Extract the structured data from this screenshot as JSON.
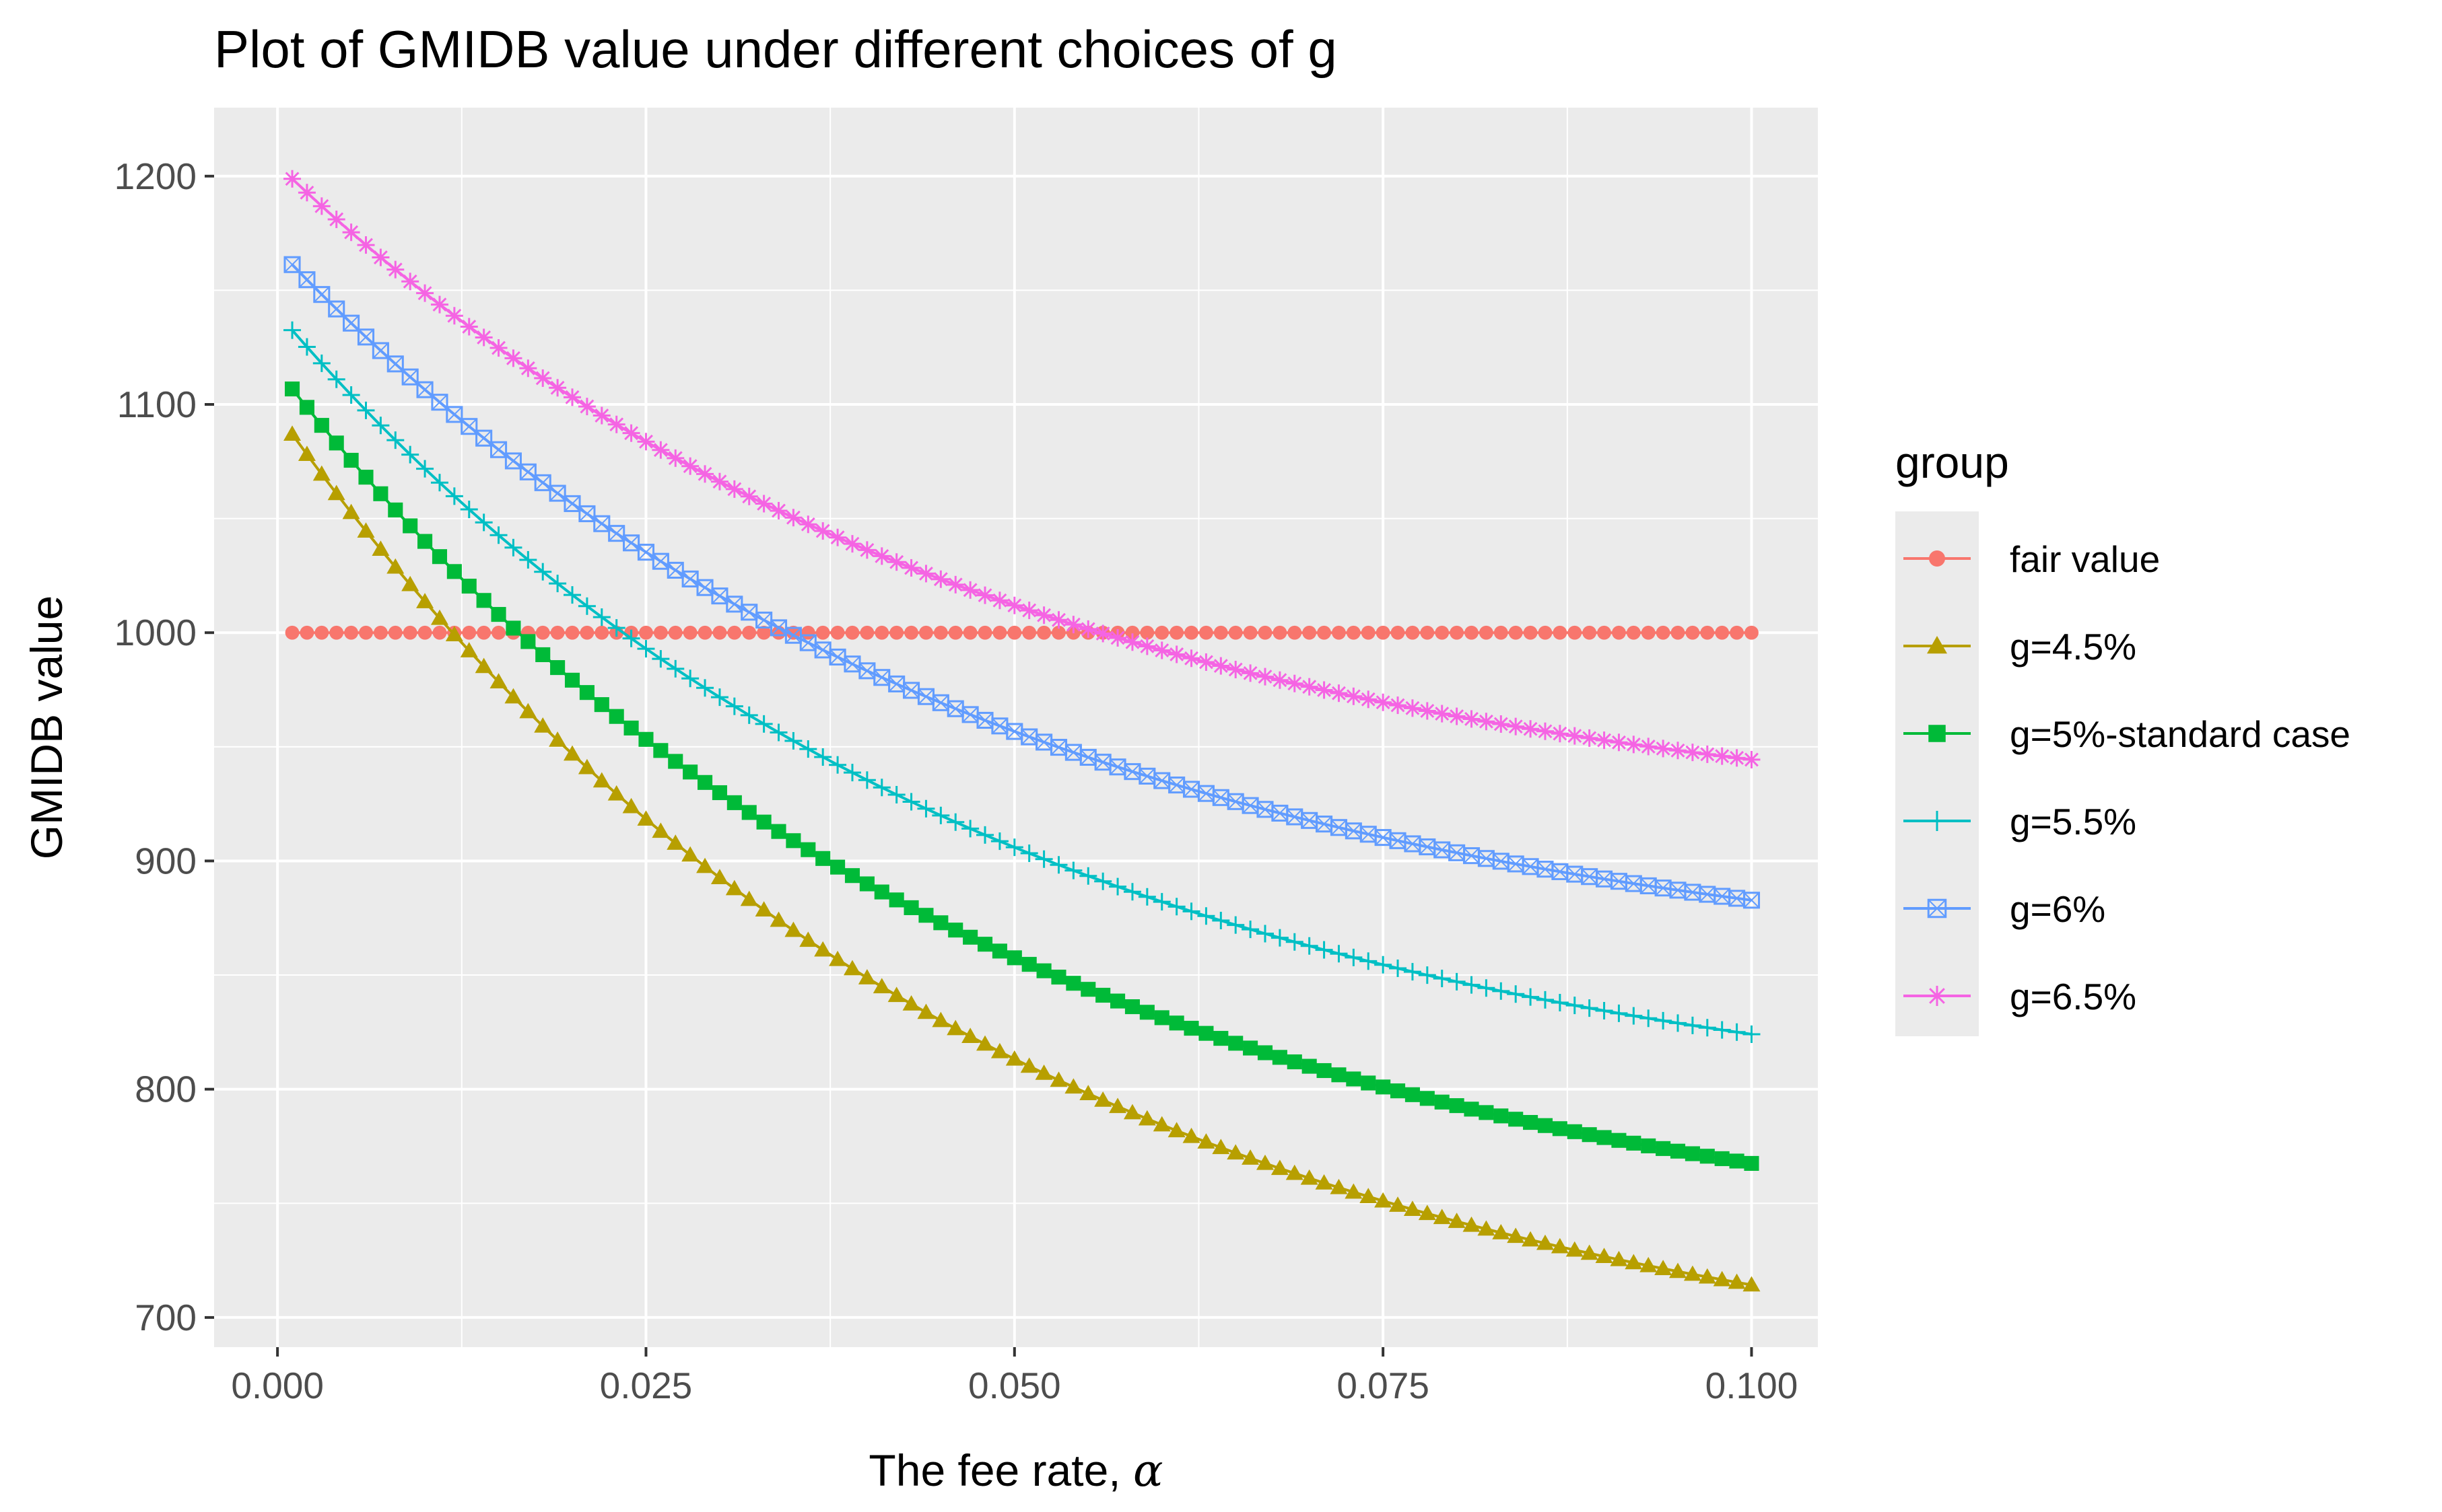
{
  "chart_data": {
    "type": "line",
    "title": "Plot of GMIDB value under different choices of g",
    "xlabel": "The fee rate,",
    "xlabel_symbol": "α",
    "ylabel": "GMIDB value",
    "xlim": [
      -0.0043,
      0.1045
    ],
    "ylim": [
      687,
      1230
    ],
    "x_ticks": [
      0.0,
      0.025,
      0.05,
      0.075,
      0.1
    ],
    "x_tick_labels": [
      "0.000",
      "0.025",
      "0.050",
      "0.075",
      "0.100"
    ],
    "y_ticks": [
      700,
      800,
      900,
      1000,
      1100,
      1200
    ],
    "y_tick_labels": [
      "700",
      "800",
      "900",
      "1000",
      "1100",
      "1200"
    ],
    "x_range": {
      "start": 0.001,
      "end": 0.1,
      "step": 0.001
    },
    "background": "#ebebeb",
    "grid": true,
    "legend": {
      "title": "group",
      "position": "right"
    },
    "series": [
      {
        "name": "fair value",
        "color": "#F8766D",
        "marker": "circle",
        "model": {
          "c": 1000,
          "a": 0,
          "k": 0
        }
      },
      {
        "name": "g=4.5%",
        "color": "#B79F00",
        "marker": "triangle",
        "model": {
          "c": 661,
          "a": 435,
          "k": 21
        }
      },
      {
        "name": "g=5%-standard case",
        "color": "#00BA38",
        "marker": "square",
        "model": {
          "c": 719,
          "a": 396,
          "k": 21
        }
      },
      {
        "name": "g=5.5%",
        "color": "#00BFC4",
        "marker": "plus",
        "model": {
          "c": 780,
          "a": 360,
          "k": 21
        }
      },
      {
        "name": "g=6%",
        "color": "#619CFF",
        "marker": "boxx",
        "model": {
          "c": 843,
          "a": 325,
          "k": 21
        }
      },
      {
        "name": "g=6.5%",
        "color": "#F564E3",
        "marker": "star",
        "model": {
          "c": 908,
          "a": 297,
          "k": 21
        }
      }
    ]
  }
}
